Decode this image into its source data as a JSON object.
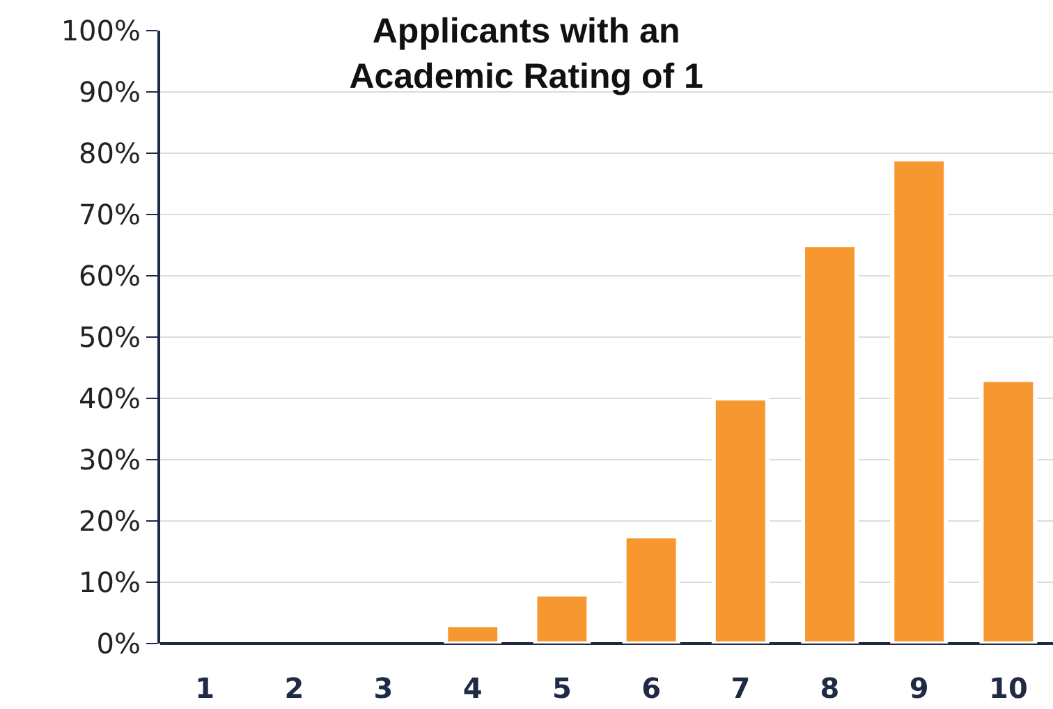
{
  "chart_data": {
    "type": "bar",
    "title": "Applicants with an\nAcademic Rating of 1",
    "categories": [
      "1",
      "2",
      "3",
      "4",
      "5",
      "6",
      "7",
      "8",
      "9",
      "10"
    ],
    "values": [
      0,
      0,
      0,
      3,
      8,
      17.5,
      40,
      65,
      79,
      43
    ],
    "color": "#f7972f",
    "ylim": [
      0,
      100
    ],
    "yticks": [
      {
        "value": 0,
        "label": "0%"
      },
      {
        "value": 10,
        "label": "10%"
      },
      {
        "value": 20,
        "label": "20%"
      },
      {
        "value": 30,
        "label": "30%"
      },
      {
        "value": 40,
        "label": "40%"
      },
      {
        "value": 50,
        "label": "50%"
      },
      {
        "value": 60,
        "label": "60%"
      },
      {
        "value": 70,
        "label": "70%"
      },
      {
        "value": 80,
        "label": "80%"
      },
      {
        "value": 90,
        "label": "90%"
      },
      {
        "value": 100,
        "label": "100%"
      }
    ],
    "grid": "y"
  }
}
